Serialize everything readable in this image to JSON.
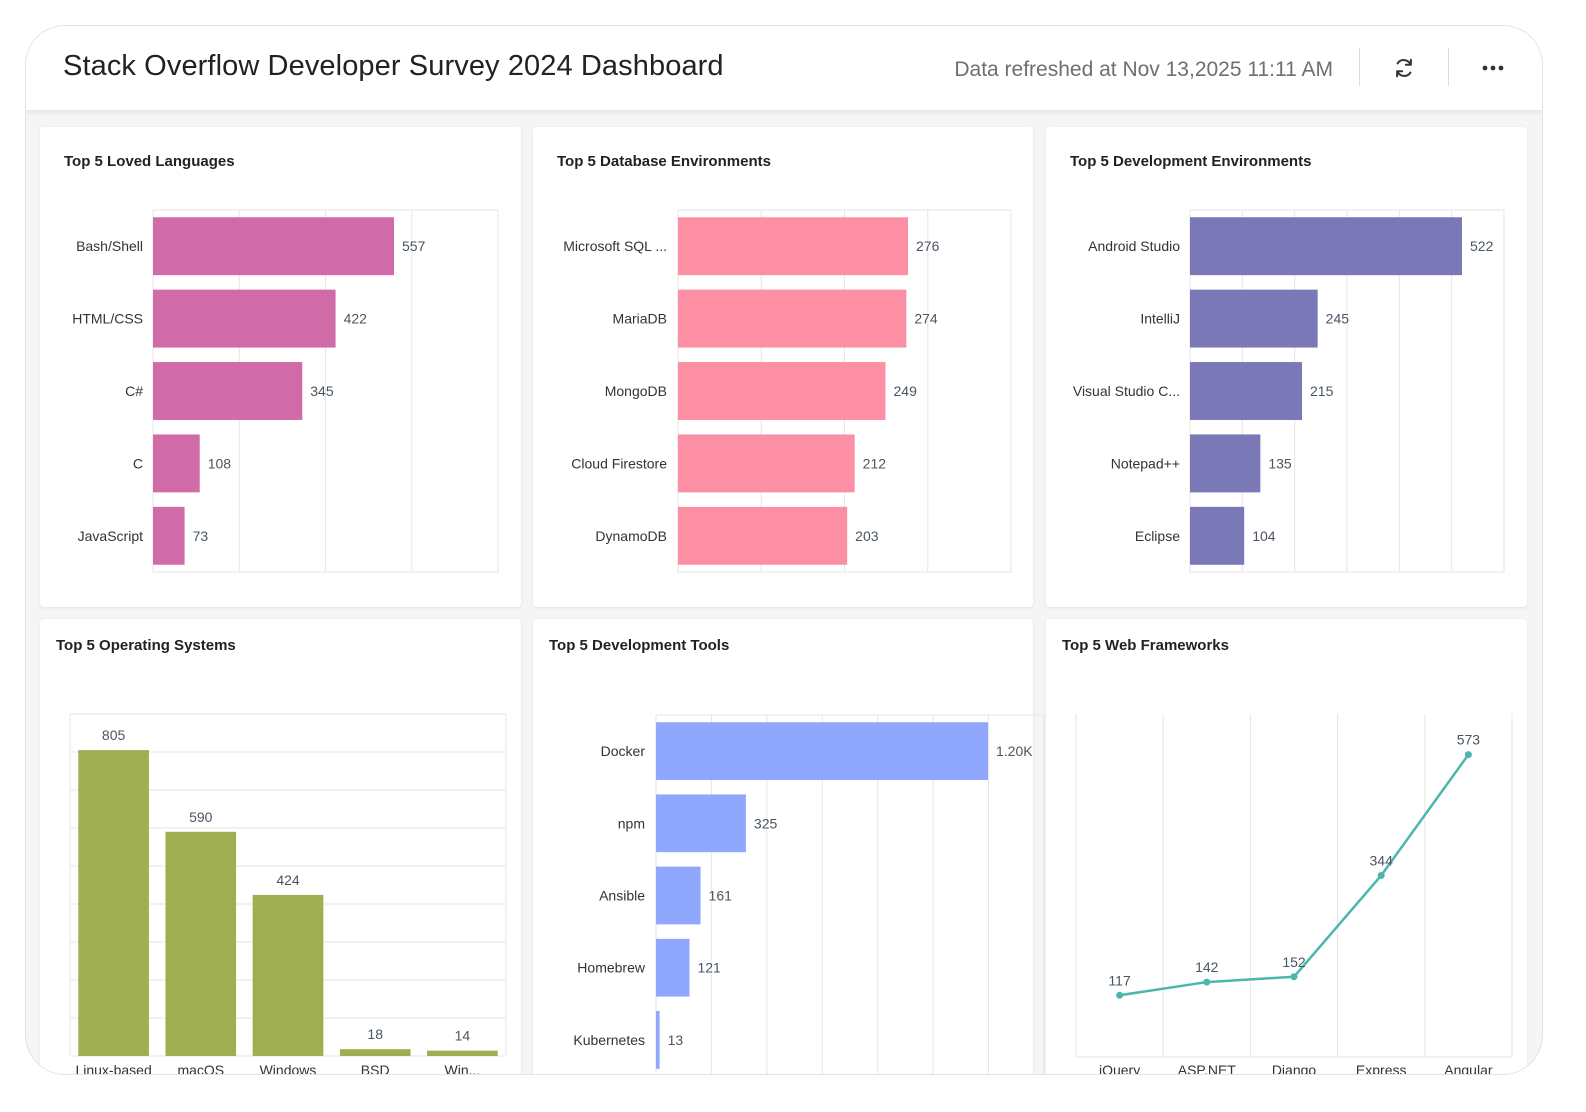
{
  "header": {
    "title": "Stack Overflow Developer Survey 2024 Dashboard",
    "refresh_text": "Data refreshed at Nov 13,2025 11:11 AM",
    "refresh_icon": "refresh-icon",
    "menu_icon": "more-horizontal-icon"
  },
  "chart_data": [
    {
      "id": "languages",
      "type": "bar",
      "orientation": "horizontal",
      "title": "Top 5 Loved Languages",
      "categories": [
        "Bash/Shell",
        "HTML/CSS",
        "C#",
        "C",
        "JavaScript"
      ],
      "values": [
        557,
        422,
        345,
        108,
        73
      ],
      "value_labels": [
        "557",
        "422",
        "345",
        "108",
        "73"
      ],
      "color": "#d16ba8",
      "xlim": [
        0,
        800
      ]
    },
    {
      "id": "databases",
      "type": "bar",
      "orientation": "horizontal",
      "title": "Top 5 Database Environments",
      "categories": [
        "Microsoft SQL ...",
        "MariaDB",
        "MongoDB",
        "Cloud Firestore",
        "DynamoDB"
      ],
      "values": [
        276,
        274,
        249,
        212,
        203
      ],
      "value_labels": [
        "276",
        "274",
        "249",
        "212",
        "203"
      ],
      "color": "#fd8fa4",
      "xlim": [
        0,
        400
      ]
    },
    {
      "id": "devenv",
      "type": "bar",
      "orientation": "horizontal",
      "title": "Top 5 Development Environments",
      "categories": [
        "Android Studio",
        "IntelliJ",
        "Visual Studio C...",
        "Notepad++",
        "Eclipse"
      ],
      "values": [
        522,
        245,
        215,
        135,
        104
      ],
      "value_labels": [
        "522",
        "245",
        "215",
        "135",
        "104"
      ],
      "color": "#7b78b8",
      "xlim": [
        0,
        600
      ]
    },
    {
      "id": "os",
      "type": "bar",
      "orientation": "vertical",
      "title": "Top 5 Operating Systems",
      "categories": [
        "Linux-based",
        "macOS",
        "Windows",
        "BSD",
        "Win..."
      ],
      "values": [
        805,
        590,
        424,
        18,
        14
      ],
      "value_labels": [
        "805",
        "590",
        "424",
        "18",
        "14"
      ],
      "color": "#9fae51",
      "ylim": [
        0,
        900
      ]
    },
    {
      "id": "tools",
      "type": "bar",
      "orientation": "horizontal",
      "title": "Top 5 Development Tools",
      "categories": [
        "Docker",
        "npm",
        "Ansible",
        "Homebrew",
        "Kubernetes"
      ],
      "values": [
        1200,
        325,
        161,
        121,
        13
      ],
      "value_labels": [
        "1.20K",
        "325",
        "161",
        "121",
        "13"
      ],
      "color": "#8fa8fd",
      "xlim": [
        0,
        1400
      ]
    },
    {
      "id": "web",
      "type": "line",
      "title": "Top 5 Web Frameworks",
      "categories": [
        "jQuery",
        "ASP.NET",
        "Django",
        "Express",
        "Angular"
      ],
      "values": [
        117,
        142,
        152,
        344,
        573
      ],
      "value_labels": [
        "117",
        "142",
        "152",
        "344",
        "573"
      ],
      "color": "#4db6ac",
      "ylim": [
        0,
        650
      ]
    }
  ]
}
